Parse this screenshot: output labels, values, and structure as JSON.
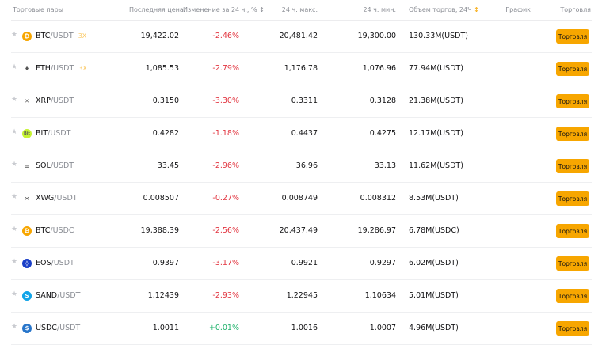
{
  "header": {
    "pairs": "Торговые пары",
    "last": "Последняя цена",
    "change": "Изменение за 24 ч., % ↕",
    "high": "24 ч. макс.",
    "low": "24 ч. мин.",
    "volume": "Объем торгов, 24Ч",
    "volume_sort": "↕",
    "chart": "График",
    "trade": "Торговля"
  },
  "colors": {
    "accent": "#f7a600",
    "down": "#e2343f",
    "up": "#20b26c"
  },
  "rows": [
    {
      "base": "BTC",
      "quote": "/USDT",
      "lev": "3X",
      "icon": "bitcoin-icon",
      "color": "#f7a600",
      "glyph": "₿",
      "last": "19,422.02",
      "change": "-2.46%",
      "dir": "down",
      "high": "20,481.42",
      "low": "19,300.00",
      "vol": "130.33M(USDT)",
      "btn": "Торговля"
    },
    {
      "base": "ETH",
      "quote": "/USDT",
      "lev": "3X",
      "icon": "ethereum-icon",
      "color": "#ffffff",
      "glyph": "♦",
      "last": "1,085.53",
      "change": "-2.79%",
      "dir": "down",
      "high": "1,176.78",
      "low": "1,076.96",
      "vol": "77.94M(USDT)",
      "btn": "Торговля"
    },
    {
      "base": "XRP",
      "quote": "/USDT",
      "icon": "xrp-icon",
      "color": "#ffffff",
      "glyph": "✕",
      "last": "0.3150",
      "change": "-3.30%",
      "dir": "down",
      "high": "0.3311",
      "low": "0.3128",
      "vol": "21.38M(USDT)",
      "btn": "Торговля"
    },
    {
      "base": "BIT",
      "quote": "/USDT",
      "icon": "bit-icon",
      "color": "#c6f432",
      "glyph": "Bit",
      "last": "0.4282",
      "change": "-1.18%",
      "dir": "down",
      "high": "0.4437",
      "low": "0.4275",
      "vol": "12.17M(USDT)",
      "btn": "Торговля"
    },
    {
      "base": "SOL",
      "quote": "/USDT",
      "icon": "solana-icon",
      "color": "#ffffff",
      "glyph": "≡",
      "last": "33.45",
      "change": "-2.96%",
      "dir": "down",
      "high": "36.96",
      "low": "33.13",
      "vol": "11.62M(USDT)",
      "btn": "Торговля"
    },
    {
      "base": "XWG",
      "quote": "/USDT",
      "icon": "xwg-icon",
      "color": "#ffffff",
      "glyph": "⋈",
      "last": "0.008507",
      "change": "-0.27%",
      "dir": "down",
      "high": "0.008749",
      "low": "0.008312",
      "vol": "8.53M(USDT)",
      "btn": "Торговля"
    },
    {
      "base": "BTC",
      "quote": "/USDC",
      "icon": "bitcoin-icon",
      "color": "#f7a600",
      "glyph": "₿",
      "last": "19,388.39",
      "change": "-2.56%",
      "dir": "down",
      "high": "20,437.49",
      "low": "19,286.97",
      "vol": "6.78M(USDC)",
      "btn": "Торговля"
    },
    {
      "base": "EOS",
      "quote": "/USDT",
      "icon": "eos-icon",
      "color": "#1a3fc7",
      "glyph": "◊",
      "last": "0.9397",
      "change": "-3.17%",
      "dir": "down",
      "high": "0.9921",
      "low": "0.9297",
      "vol": "6.02M(USDT)",
      "btn": "Торговля"
    },
    {
      "base": "SAND",
      "quote": "/USDT",
      "icon": "sand-icon",
      "color": "#11a4e8",
      "glyph": "S",
      "last": "1.12439",
      "change": "-2.93%",
      "dir": "down",
      "high": "1.22945",
      "low": "1.10634",
      "vol": "5.01M(USDT)",
      "btn": "Торговля"
    },
    {
      "base": "USDC",
      "quote": "/USDT",
      "icon": "usdc-icon",
      "color": "#2775ca",
      "glyph": "$",
      "last": "1.0011",
      "change": "+0.01%",
      "dir": "up",
      "high": "1.0016",
      "low": "1.0007",
      "vol": "4.96M(USDT)",
      "btn": "Торговля"
    }
  ]
}
